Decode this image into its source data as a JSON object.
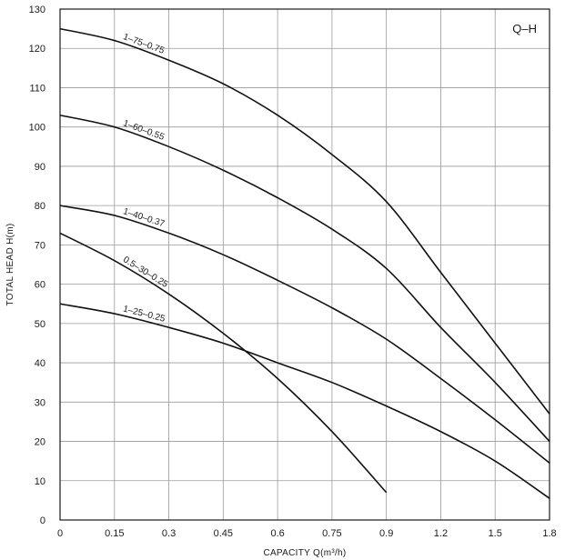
{
  "chart_data": {
    "type": "line",
    "title": "Q–H",
    "xlabel": "CAPACITY  Q(m³/h)",
    "ylabel": "TOTAL HEAD  H(m)",
    "xlim": [
      0,
      1.8
    ],
    "ylim": [
      0,
      130
    ],
    "grid": true,
    "x_ticks": [
      0,
      0.15,
      0.3,
      0.45,
      0.6,
      0.75,
      0.9,
      1.2,
      1.5,
      1.8
    ],
    "x_tick_labels": [
      "0",
      "0.15",
      "0.3",
      "0.45",
      "0.6",
      "0.75",
      "0.9",
      "1.2",
      "1.5",
      "1.8"
    ],
    "y_ticks": [
      0,
      10,
      20,
      30,
      40,
      50,
      60,
      70,
      80,
      90,
      100,
      110,
      120,
      130
    ],
    "y_tick_labels": [
      "0",
      "10",
      "20",
      "30",
      "40",
      "50",
      "60",
      "70",
      "80",
      "90",
      "100",
      "110",
      "120",
      "130"
    ],
    "series": [
      {
        "name": "1–75–0.75",
        "x": [
          0,
          0.15,
          0.3,
          0.45,
          0.6,
          0.75,
          0.9,
          1.2,
          1.5,
          1.8
        ],
        "y": [
          125,
          122,
          117,
          111,
          103,
          93,
          81,
          63,
          45,
          27
        ]
      },
      {
        "name": "1–60–0.55",
        "x": [
          0,
          0.15,
          0.3,
          0.45,
          0.6,
          0.75,
          0.9,
          1.2,
          1.5,
          1.8
        ],
        "y": [
          103,
          100,
          95,
          89,
          82,
          74,
          64,
          49,
          35,
          20
        ]
      },
      {
        "name": "1–40–0.37",
        "x": [
          0,
          0.15,
          0.3,
          0.45,
          0.6,
          0.75,
          0.9,
          1.2,
          1.5,
          1.8
        ],
        "y": [
          80,
          77.5,
          73,
          67.5,
          61,
          54,
          46,
          36,
          25.5,
          14.5
        ]
      },
      {
        "name": "0.5–30–0.25",
        "x": [
          0,
          0.15,
          0.3,
          0.45,
          0.6,
          0.75,
          0.9
        ],
        "y": [
          73,
          66,
          57.5,
          47.5,
          36,
          22.5,
          7
        ]
      },
      {
        "name": "1–25–0.25",
        "x": [
          0,
          0.15,
          0.3,
          0.45,
          0.6,
          0.75,
          0.9,
          1.2,
          1.5,
          1.8
        ],
        "y": [
          55,
          52.5,
          49,
          45,
          40,
          35,
          29,
          22.5,
          15,
          5.5
        ]
      }
    ]
  }
}
